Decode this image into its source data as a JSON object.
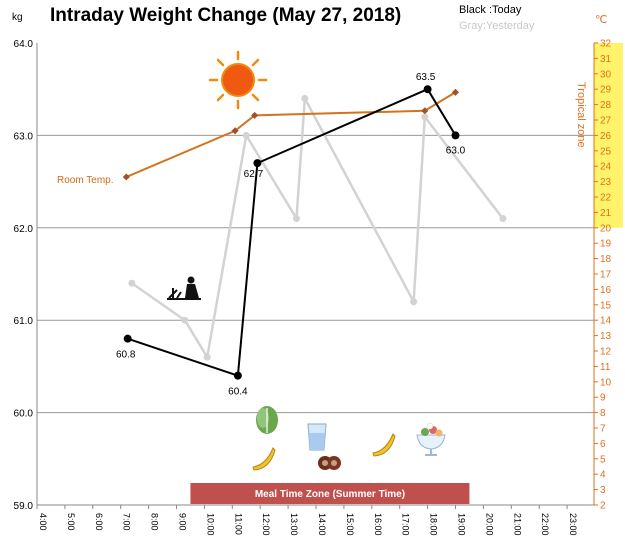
{
  "chart_data": {
    "type": "line",
    "title": "Intraday Weight Change (May 27, 2018)",
    "legend": {
      "today": "Black :Today",
      "yesterday": "Gray:Yesterday"
    },
    "y_unit": "kg",
    "y2_unit": "℃",
    "y2_label": "Tropical zone",
    "ylim": [
      59.0,
      64.0
    ],
    "y_ticks": [
      "59.0",
      "60.0",
      "61.0",
      "62.0",
      "63.0",
      "64.0"
    ],
    "y2lim": [
      2,
      32
    ],
    "y2_ticks": [
      "2",
      "3",
      "4",
      "5",
      "6",
      "7",
      "8",
      "9",
      "10",
      "11",
      "12",
      "13",
      "14",
      "15",
      "16",
      "17",
      "18",
      "19",
      "20",
      "21",
      "22",
      "23",
      "24",
      "25",
      "26",
      "27",
      "28",
      "29",
      "30",
      "31",
      "32"
    ],
    "tropical_zone_from": 20,
    "x_ticks": [
      "4:00",
      "5:00",
      "6:00",
      "7:00",
      "8:00",
      "9:00",
      "10:00",
      "11:00",
      "12:00",
      "13:00",
      "14:00",
      "15:00",
      "16:00",
      "17:00",
      "18:00",
      "19:00",
      "20:00",
      "21:00",
      "22:00",
      "23:00"
    ],
    "series": [
      {
        "name": "Today",
        "color": "#000000",
        "x": [
          7.25,
          11.2,
          11.9,
          18.0,
          19.0
        ],
        "values": [
          60.8,
          60.4,
          62.7,
          63.5,
          63.0
        ],
        "labels": [
          "60.8",
          "60.4",
          "62.7",
          "63.5",
          "63.0"
        ]
      },
      {
        "name": "Yesterday",
        "color": "#d3d3d3",
        "x": [
          7.4,
          9.3,
          10.1,
          11.5,
          13.3,
          13.6,
          17.5,
          17.9,
          20.7
        ],
        "values": [
          61.4,
          61.0,
          60.6,
          63.0,
          62.1,
          63.4,
          61.2,
          63.2,
          62.1
        ]
      },
      {
        "name": "Room Temp.",
        "color": "#d4731e",
        "axis": "y2",
        "x": [
          7.2,
          11.1,
          11.8,
          17.9,
          19.0
        ],
        "values": [
          23.3,
          26.3,
          27.3,
          27.6,
          28.8
        ]
      }
    ],
    "annotations": {
      "room_temp_label": "Room Temp.",
      "meal_zone": {
        "label": "Meal Time Zone (Summer Time)",
        "x_start": 9.5,
        "x_end": 19.5,
        "color": "#c0504d"
      },
      "icons": [
        "sun-icon",
        "gardening-icon",
        "lettuce-icon",
        "banana-icon",
        "water-glass-icon",
        "cookie-icon",
        "banana-icon",
        "dessert-cup-icon"
      ]
    }
  }
}
